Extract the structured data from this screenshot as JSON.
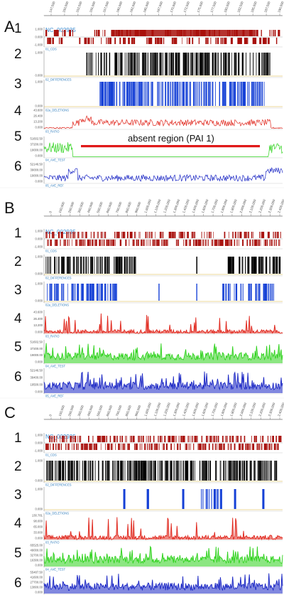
{
  "colors": {
    "cds": "#a8100c",
    "differences": "#1540d6",
    "deletions": "#1028c8",
    "ratio": "#e0261c",
    "ave_test": "#2ed21c",
    "ave_ref": "#1a26c4",
    "absent_bar": "#e01818",
    "track_name": "#2b7bbd"
  },
  "panels": [
    {
      "letter": "A",
      "sequence": "NC_002935",
      "scale_labels": [
        "147,500",
        "150,000",
        "152,500",
        "155,000",
        "157,500",
        "160,000",
        "162,500",
        "165,000",
        "167,500",
        "170,000",
        "172,500",
        "175,000",
        "177,500",
        "180,000",
        "182,500",
        "185,000",
        "187,500",
        "190,000"
      ],
      "annotation": "absent region (PAI 1)",
      "tracks": [
        {
          "num": "1",
          "name": "01_CDS",
          "ticks": [
            "1.000",
            "0.000",
            "-1.000"
          ]
        },
        {
          "num": "2",
          "name": "02_DIFFERENCES",
          "ticks": [
            "1.000",
            "0.000"
          ]
        },
        {
          "num": "3",
          "name": "02a_DELETIONS",
          "ticks": [
            "1.000",
            "0.000"
          ]
        },
        {
          "num": "4",
          "name": "03_RATIO",
          "ticks": [
            "43.600",
            "26.400",
            "13.200",
            "0.000"
          ]
        },
        {
          "num": "5",
          "name": "04_AVE_TEST",
          "ticks": [
            "51602.50",
            "37200.00",
            "19000.00",
            "0.000"
          ]
        },
        {
          "num": "6",
          "name": "05_AVE_REF",
          "ticks": [
            "52146.50",
            "39000.00",
            "19000.00",
            "0.000"
          ]
        }
      ]
    },
    {
      "letter": "B",
      "sequence": "NC_002935",
      "scale_labels": [
        "0",
        "100,000",
        "200,000",
        "300,000",
        "400,000",
        "500,000",
        "600,000",
        "700,000",
        "800,000",
        "900,000",
        "1,000,000",
        "1,100,000",
        "1,200,000",
        "1,300,000",
        "1,400,000",
        "1,500,000",
        "1,600,000",
        "1,700,000",
        "1,800,000",
        "1,900,000",
        "2,000,000",
        "2,100,000",
        "2,200,000",
        "2,300,000",
        "2,400,000"
      ],
      "annotation": "",
      "tracks": [
        {
          "num": "1",
          "name": "01_CDS",
          "ticks": [
            "1.000",
            "0.000",
            "-1.000"
          ]
        },
        {
          "num": "2",
          "name": "02_DIFFERENCES",
          "ticks": [
            "1.000",
            "0.000"
          ]
        },
        {
          "num": "3",
          "name": "02a_DELETIONS",
          "ticks": [
            "1.000",
            "0.000"
          ]
        },
        {
          "num": "4",
          "name": "03_RATIO",
          "ticks": [
            "43.600",
            "26.400",
            "13.200",
            "0.000"
          ]
        },
        {
          "num": "5",
          "name": "04_AVE_TEST",
          "ticks": [
            "51602.50",
            "37200.00",
            "19000.00",
            "0.000"
          ]
        },
        {
          "num": "6",
          "name": "05_AVE_REF",
          "ticks": [
            "52146.50",
            "39400.00",
            "19500.00",
            "0.000"
          ]
        }
      ]
    },
    {
      "letter": "C",
      "sequence": "NC_002935",
      "scale_labels": [
        "0",
        "100,000",
        "200,000",
        "300,000",
        "400,000",
        "500,000",
        "600,000",
        "700,000",
        "800,000",
        "900,000",
        "1,000,000",
        "1,100,000",
        "1,200,000",
        "1,300,000",
        "1,400,000",
        "1,500,000",
        "1,600,000",
        "1,700,000",
        "1,800,000",
        "1,900,000",
        "2,000,000",
        "2,100,000",
        "2,200,000",
        "2,300,000",
        "2,400,000"
      ],
      "annotation": "",
      "tracks": [
        {
          "num": "1",
          "name": "01_CDS",
          "ticks": [
            "1.000",
            "0.000",
            "-1.000"
          ]
        },
        {
          "num": "2",
          "name": "02_DIFFERENCES",
          "ticks": [
            "1.000",
            "0.000"
          ]
        },
        {
          "num": "3",
          "name": "02a_DELETIONS",
          "ticks": [
            "1.000",
            "0.000"
          ]
        },
        {
          "num": "4",
          "name": "03_RATIO",
          "ticks": [
            "130.781",
            "98.000",
            "65.000",
            "33.000",
            "0.000"
          ]
        },
        {
          "num": "5",
          "name": "04_AVE_TEST",
          "ticks": [
            "65525.00",
            "49000.00",
            "32700.00",
            "16300.00",
            "0.000"
          ]
        },
        {
          "num": "6",
          "name": "05_AVE_REF",
          "ticks": [
            "55487.50",
            "41600.00",
            "27700.00",
            "13800.00",
            "0.000"
          ]
        }
      ]
    }
  ]
}
